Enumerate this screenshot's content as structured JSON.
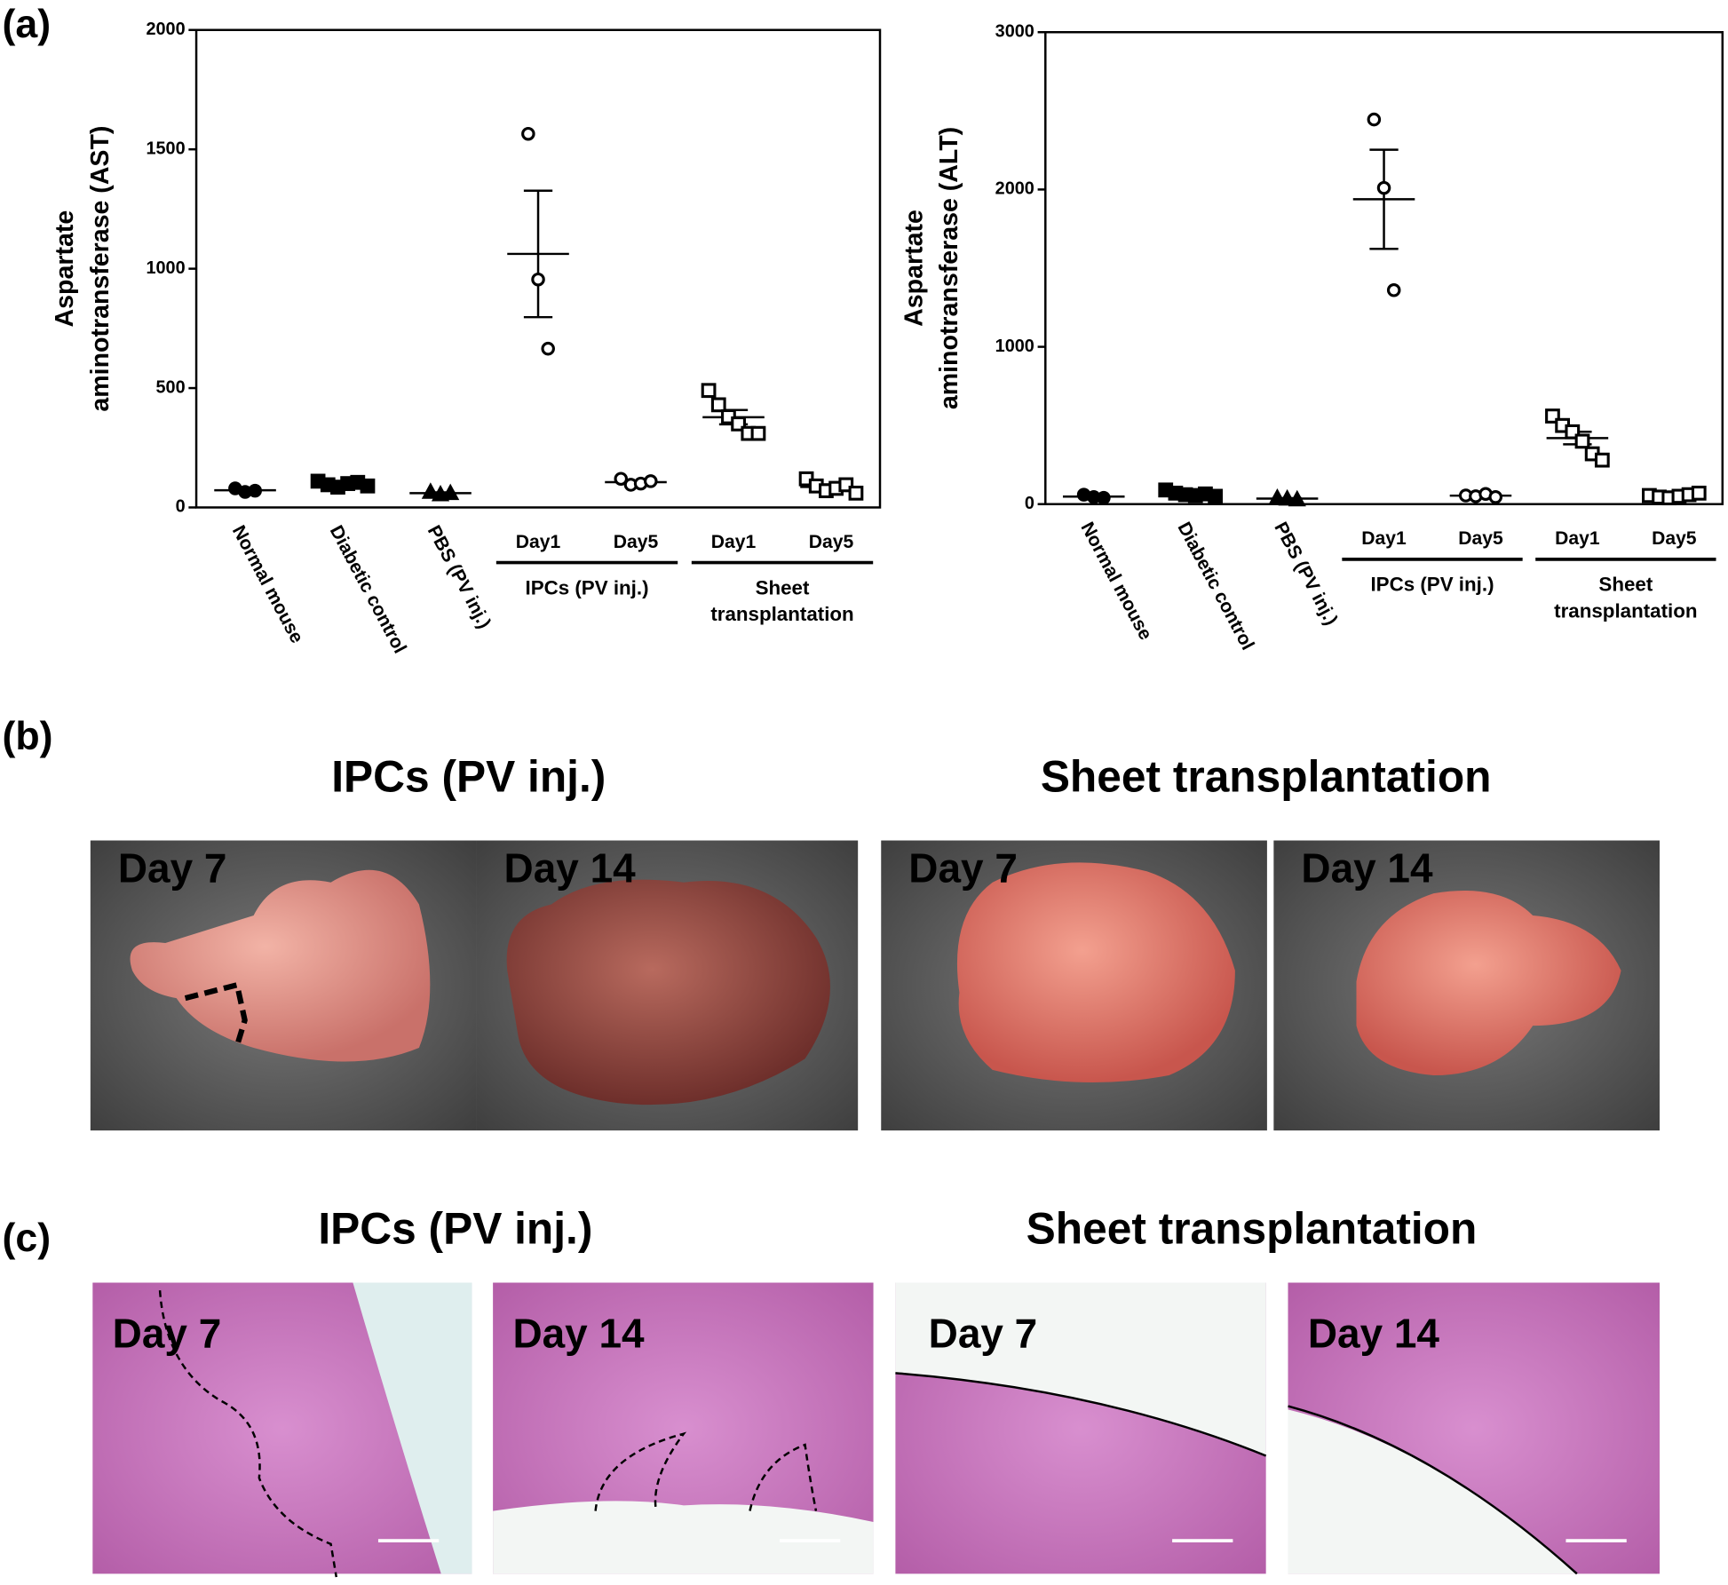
{
  "chart_data": [
    {
      "type": "dot",
      "ylabel": [
        "Aspartate",
        "aminotransferase (AST)"
      ],
      "ylim": [
        0,
        2000
      ],
      "yticks": [
        0,
        500,
        1000,
        1500,
        2000
      ],
      "categories": [
        "Normal mouse",
        "Diabetic control",
        "PBS (PV inj.)",
        "Day1",
        "Day5",
        "Day1",
        "Day5"
      ],
      "groups": [
        {
          "name": [
            "IPCs (PV inj.)"
          ],
          "categories": [
            3,
            4
          ]
        },
        {
          "name": [
            "Sheet",
            "transplantation"
          ],
          "categories": [
            5,
            6
          ]
        }
      ],
      "markers": [
        "filled-circle",
        "filled-square",
        "filled-triangle",
        "open-circle",
        "open-circle",
        "open-square",
        "open-square"
      ],
      "points": [
        [
          80,
          65,
          70
        ],
        [
          110,
          95,
          85,
          100,
          105,
          90
        ],
        [
          65,
          55,
          60
        ],
        [
          1565,
          955,
          665
        ],
        [
          120,
          95,
          100,
          110
        ],
        [
          490,
          430,
          380,
          350,
          310,
          310
        ],
        [
          120,
          90,
          70,
          80,
          95,
          60
        ]
      ],
      "means": [
        72,
        98,
        60,
        1062,
        106,
        378,
        86
      ],
      "errors": [
        5,
        4,
        3,
        265,
        5,
        30,
        10
      ]
    },
    {
      "type": "dot",
      "ylabel": [
        "Aspartate",
        "aminotransferase (ALT)"
      ],
      "ylim": [
        0,
        3000
      ],
      "yticks": [
        0,
        1000,
        2000,
        3000
      ],
      "categories": [
        "Normal mouse",
        "Diabetic control",
        "PBS (PV inj.)",
        "Day1",
        "Day5",
        "Day1",
        "Day5"
      ],
      "groups": [
        {
          "name": [
            "IPCs (PV inj.)"
          ],
          "categories": [
            3,
            4
          ]
        },
        {
          "name": [
            "Sheet",
            "transplantation"
          ],
          "categories": [
            5,
            6
          ]
        }
      ],
      "markers": [
        "filled-circle",
        "filled-square",
        "filled-triangle",
        "open-circle",
        "open-circle",
        "open-square",
        "open-square"
      ],
      "points": [
        [
          60,
          45,
          40
        ],
        [
          90,
          70,
          60,
          55,
          65,
          50
        ],
        [
          40,
          35,
          30
        ],
        [
          2445,
          2010,
          1360
        ],
        [
          55,
          50,
          65,
          45
        ],
        [
          560,
          500,
          460,
          400,
          320,
          280
        ],
        [
          55,
          45,
          40,
          50,
          60,
          70
        ]
      ],
      "means": [
        48,
        65,
        35,
        1938,
        54,
        420,
        53
      ],
      "errors": [
        6,
        6,
        3,
        315,
        4,
        40,
        4
      ]
    }
  ],
  "figure": {
    "panel_labels": [
      "(a)",
      "(b)",
      "(c)"
    ],
    "gross": {
      "titles": [
        "IPCs (PV inj.)",
        "Sheet transplantation"
      ],
      "images": [
        "Day 7",
        "Day 14",
        "Day 7",
        "Day 14"
      ]
    },
    "histology": {
      "titles": [
        "IPCs (PV inj.)",
        "Sheet transplantation"
      ],
      "images": [
        "Day 7",
        "Day 14",
        "Day 7",
        "Day 14"
      ]
    }
  }
}
